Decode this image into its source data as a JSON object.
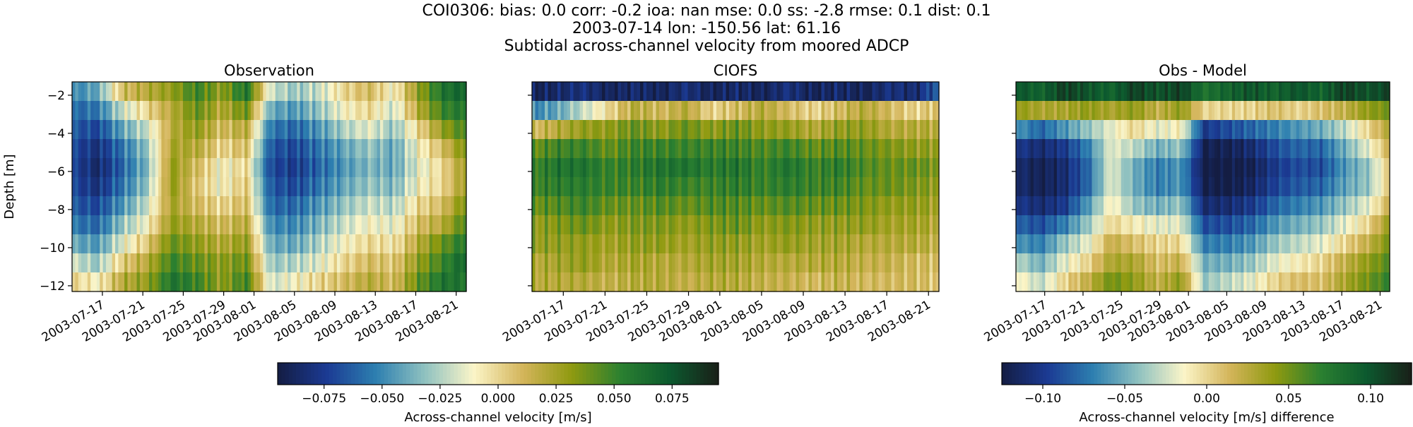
{
  "figure": {
    "title_lines": [
      "COI0306: bias: 0.0  corr: -0.2  ioa: nan  mse: 0.0  ss: -2.8  rmse: 0.1  dist: 0.1",
      "2003-07-14 lon: -150.56 lat: 61.16",
      "Subtidal across-channel velocity from moored ADCP"
    ]
  },
  "chart_data": [
    {
      "type": "heatmap",
      "title": "Observation",
      "ylabel": "Depth [m]",
      "xlabel": "",
      "x_tick_labels": [
        "2003-07-17",
        "2003-07-21",
        "2003-07-25",
        "2003-07-29",
        "2003-08-01",
        "2003-08-05",
        "2003-08-09",
        "2003-08-13",
        "2003-08-17",
        "2003-08-21"
      ],
      "y_ticks": [
        -2,
        -4,
        -6,
        -8,
        -10,
        -12
      ],
      "x_range": [
        "2003-07-14",
        "2003-08-22"
      ],
      "y_range": [
        -12.3,
        -1.3
      ],
      "colorbar": "cb1",
      "columns": [
        [
          -0.05,
          -0.06,
          -0.065,
          -0.07,
          -0.072,
          -0.07,
          -0.065,
          -0.055,
          -0.04,
          -0.02,
          0.0
        ],
        [
          -0.04,
          -0.055,
          -0.07,
          -0.08,
          -0.085,
          -0.08,
          -0.07,
          -0.06,
          -0.045,
          -0.03,
          -0.01
        ],
        [
          0.01,
          -0.02,
          -0.04,
          -0.055,
          -0.06,
          -0.055,
          -0.045,
          -0.03,
          -0.015,
          0.005,
          0.02
        ],
        [
          0.02,
          0.0,
          -0.02,
          -0.03,
          -0.035,
          -0.03,
          -0.02,
          -0.01,
          0.005,
          0.02,
          0.03
        ],
        [
          0.03,
          0.02,
          0.02,
          0.025,
          0.03,
          0.03,
          0.025,
          0.03,
          0.04,
          0.05,
          0.06
        ],
        [
          0.05,
          0.04,
          0.03,
          0.02,
          0.01,
          0.005,
          0.01,
          0.02,
          0.03,
          0.04,
          0.05
        ],
        [
          0.03,
          0.02,
          0.01,
          0.0,
          -0.01,
          -0.01,
          0.0,
          0.01,
          0.02,
          0.03,
          0.03
        ],
        [
          0.06,
          0.04,
          0.02,
          0.01,
          0.0,
          0.005,
          0.01,
          0.02,
          0.03,
          0.04,
          0.05
        ],
        [
          -0.02,
          -0.04,
          -0.055,
          -0.065,
          -0.07,
          -0.065,
          -0.06,
          -0.05,
          -0.04,
          -0.03,
          -0.02
        ],
        [
          -0.03,
          -0.045,
          -0.06,
          -0.07,
          -0.075,
          -0.07,
          -0.06,
          -0.05,
          -0.04,
          -0.025,
          -0.01
        ],
        [
          -0.02,
          -0.03,
          -0.045,
          -0.055,
          -0.06,
          -0.055,
          -0.045,
          -0.035,
          -0.025,
          -0.015,
          0.0
        ],
        [
          0.0,
          -0.01,
          -0.025,
          -0.04,
          -0.045,
          -0.04,
          -0.03,
          -0.02,
          -0.01,
          0.0,
          0.01
        ],
        [
          0.01,
          0.0,
          -0.015,
          -0.03,
          -0.035,
          -0.03,
          -0.02,
          -0.01,
          0.0,
          0.01,
          0.02
        ],
        [
          -0.01,
          -0.02,
          -0.03,
          -0.04,
          -0.04,
          -0.035,
          -0.025,
          -0.015,
          -0.005,
          0.005,
          0.01
        ],
        [
          0.03,
          0.02,
          0.0,
          -0.01,
          -0.015,
          -0.01,
          0.0,
          0.01,
          0.02,
          0.03,
          0.04
        ],
        [
          0.06,
          0.05,
          0.03,
          0.01,
          0.0,
          0.0,
          0.01,
          0.02,
          0.04,
          0.05,
          0.06
        ],
        [
          0.07,
          0.06,
          0.05,
          0.04,
          0.03,
          0.03,
          0.04,
          0.05,
          0.06,
          0.07,
          0.06
        ]
      ]
    },
    {
      "type": "heatmap",
      "title": "CIOFS",
      "xlabel": "",
      "x_tick_labels": [
        "2003-07-17",
        "2003-07-21",
        "2003-07-25",
        "2003-07-29",
        "2003-08-01",
        "2003-08-05",
        "2003-08-09",
        "2003-08-13",
        "2003-08-17",
        "2003-08-21"
      ],
      "y_ticks": [
        -2,
        -4,
        -6,
        -8,
        -10,
        -12
      ],
      "x_range": [
        "2003-07-14",
        "2003-08-22"
      ],
      "y_range": [
        -12.3,
        -1.3
      ],
      "colorbar": "cb1",
      "columns": [
        [
          -0.09,
          -0.05,
          0.01,
          0.04,
          0.05,
          0.05,
          0.04,
          0.03,
          0.03,
          0.02,
          0.02
        ],
        [
          -0.085,
          -0.04,
          0.02,
          0.05,
          0.06,
          0.055,
          0.045,
          0.035,
          0.03,
          0.025,
          0.02
        ],
        [
          -0.08,
          -0.02,
          0.03,
          0.05,
          0.06,
          0.055,
          0.05,
          0.04,
          0.03,
          0.03,
          0.02
        ],
        [
          -0.09,
          0.0,
          0.03,
          0.04,
          0.05,
          0.05,
          0.04,
          0.03,
          0.025,
          0.02,
          0.015
        ],
        [
          -0.085,
          0.02,
          0.04,
          0.05,
          0.055,
          0.05,
          0.04,
          0.035,
          0.03,
          0.025,
          0.02
        ],
        [
          -0.09,
          0.01,
          0.03,
          0.05,
          0.06,
          0.055,
          0.045,
          0.035,
          0.03,
          0.02,
          0.02
        ],
        [
          -0.08,
          0.02,
          0.04,
          0.05,
          0.06,
          0.05,
          0.04,
          0.03,
          0.025,
          0.02,
          0.015
        ],
        [
          -0.09,
          0.0,
          0.03,
          0.05,
          0.055,
          0.05,
          0.045,
          0.035,
          0.03,
          0.025,
          0.02
        ],
        [
          -0.085,
          0.01,
          0.04,
          0.05,
          0.06,
          0.055,
          0.045,
          0.04,
          0.03,
          0.025,
          0.02
        ],
        [
          -0.09,
          0.02,
          0.03,
          0.045,
          0.05,
          0.05,
          0.04,
          0.03,
          0.025,
          0.02,
          0.015
        ],
        [
          -0.08,
          0.01,
          0.03,
          0.05,
          0.06,
          0.055,
          0.045,
          0.035,
          0.03,
          0.02,
          0.015
        ],
        [
          -0.09,
          0.0,
          0.02,
          0.04,
          0.05,
          0.05,
          0.04,
          0.03,
          0.025,
          0.02,
          0.01
        ],
        [
          -0.085,
          0.01,
          0.03,
          0.045,
          0.055,
          0.05,
          0.04,
          0.03,
          0.025,
          0.02,
          0.015
        ],
        [
          -0.09,
          0.02,
          0.03,
          0.04,
          0.045,
          0.04,
          0.035,
          0.03,
          0.02,
          0.015,
          0.01
        ],
        [
          -0.08,
          0.01,
          0.02,
          0.035,
          0.04,
          0.04,
          0.03,
          0.025,
          0.02,
          0.015,
          0.01
        ],
        [
          -0.085,
          0.0,
          0.02,
          0.03,
          0.04,
          0.035,
          0.03,
          0.025,
          0.02,
          0.01,
          0.01
        ],
        [
          -0.06,
          0.01,
          0.02,
          0.03,
          0.035,
          0.03,
          0.025,
          0.02,
          0.015,
          0.01,
          0.005
        ]
      ]
    },
    {
      "type": "heatmap",
      "title": "Obs - Model",
      "xlabel": "",
      "x_tick_labels": [
        "2003-07-17",
        "2003-07-21",
        "2003-07-25",
        "2003-07-29",
        "2003-08-01",
        "2003-08-05",
        "2003-08-09",
        "2003-08-13",
        "2003-08-17",
        "2003-08-21"
      ],
      "y_ticks": [
        -2,
        -4,
        -6,
        -8,
        -10,
        -12
      ],
      "x_range": [
        "2003-07-14",
        "2003-08-22"
      ],
      "y_range": [
        -12.3,
        -1.3
      ],
      "colorbar": "cb2",
      "columns": [
        [
          0.1,
          0.04,
          -0.06,
          -0.1,
          -0.11,
          -0.11,
          -0.1,
          -0.08,
          -0.06,
          -0.03,
          -0.01
        ],
        [
          0.09,
          0.03,
          -0.08,
          -0.11,
          -0.12,
          -0.12,
          -0.11,
          -0.09,
          -0.07,
          -0.05,
          -0.03
        ],
        [
          0.11,
          0.03,
          -0.06,
          -0.1,
          -0.11,
          -0.11,
          -0.1,
          -0.07,
          -0.04,
          -0.02,
          0.0
        ],
        [
          0.1,
          0.04,
          -0.04,
          -0.07,
          -0.08,
          -0.08,
          -0.06,
          -0.04,
          -0.02,
          0.0,
          0.02
        ],
        [
          0.09,
          0.03,
          -0.02,
          -0.02,
          -0.02,
          -0.02,
          -0.01,
          0.0,
          0.02,
          0.03,
          0.05
        ],
        [
          0.11,
          0.04,
          0.0,
          -0.03,
          -0.05,
          -0.05,
          -0.04,
          -0.01,
          0.01,
          0.03,
          0.04
        ],
        [
          0.1,
          0.02,
          -0.02,
          -0.05,
          -0.07,
          -0.07,
          -0.05,
          -0.02,
          0.0,
          0.01,
          0.02
        ],
        [
          0.11,
          0.04,
          -0.01,
          -0.04,
          -0.06,
          -0.06,
          -0.04,
          -0.02,
          0.0,
          0.02,
          0.04
        ],
        [
          0.08,
          0.0,
          -0.1,
          -0.12,
          -0.125,
          -0.12,
          -0.11,
          -0.09,
          -0.07,
          -0.05,
          -0.04
        ],
        [
          0.09,
          0.0,
          -0.09,
          -0.12,
          -0.125,
          -0.125,
          -0.11,
          -0.09,
          -0.07,
          -0.05,
          -0.03
        ],
        [
          0.1,
          0.0,
          -0.08,
          -0.11,
          -0.12,
          -0.115,
          -0.1,
          -0.08,
          -0.06,
          -0.04,
          -0.02
        ],
        [
          0.09,
          0.01,
          -0.07,
          -0.09,
          -0.1,
          -0.095,
          -0.08,
          -0.06,
          -0.04,
          -0.02,
          0.0
        ],
        [
          0.1,
          0.0,
          -0.06,
          -0.08,
          -0.09,
          -0.085,
          -0.07,
          -0.05,
          -0.03,
          -0.01,
          0.01
        ],
        [
          0.09,
          0.01,
          -0.05,
          -0.08,
          -0.09,
          -0.08,
          -0.06,
          -0.04,
          -0.02,
          0.0,
          0.01
        ],
        [
          0.11,
          0.02,
          -0.03,
          -0.05,
          -0.06,
          -0.055,
          -0.04,
          -0.02,
          0.0,
          0.02,
          0.03
        ],
        [
          0.1,
          0.04,
          0.0,
          -0.02,
          -0.04,
          -0.04,
          -0.02,
          0.0,
          0.02,
          0.04,
          0.05
        ],
        [
          0.11,
          0.05,
          0.03,
          0.02,
          0.01,
          0.01,
          0.02,
          0.04,
          0.05,
          0.06,
          0.07
        ]
      ]
    }
  ],
  "colorbars": {
    "cb1": {
      "label": "Across-channel velocity [m/s]",
      "range": [
        -0.095,
        0.095
      ],
      "ticks": [
        -0.075,
        -0.05,
        -0.025,
        0.0,
        0.025,
        0.05,
        0.075
      ],
      "tick_labels": [
        "−0.075",
        "−0.050",
        "−0.025",
        "0.000",
        "0.025",
        "0.050",
        "0.075"
      ]
    },
    "cb2": {
      "label": "Across-channel velocity [m/s] difference",
      "range": [
        -0.125,
        0.125
      ],
      "ticks": [
        -0.1,
        -0.05,
        0.0,
        0.05,
        0.1
      ],
      "tick_labels": [
        "−0.10",
        "−0.05",
        "0.00",
        "0.05",
        "0.10"
      ]
    }
  },
  "colors": {
    "colormap": [
      "#141d43",
      "#1b3a93",
      "#2d7fb0",
      "#8fc1c0",
      "#fbf5c8",
      "#d4b55b",
      "#8f9a10",
      "#2b8030",
      "#0c5a2f",
      "#1a1f18"
    ]
  }
}
